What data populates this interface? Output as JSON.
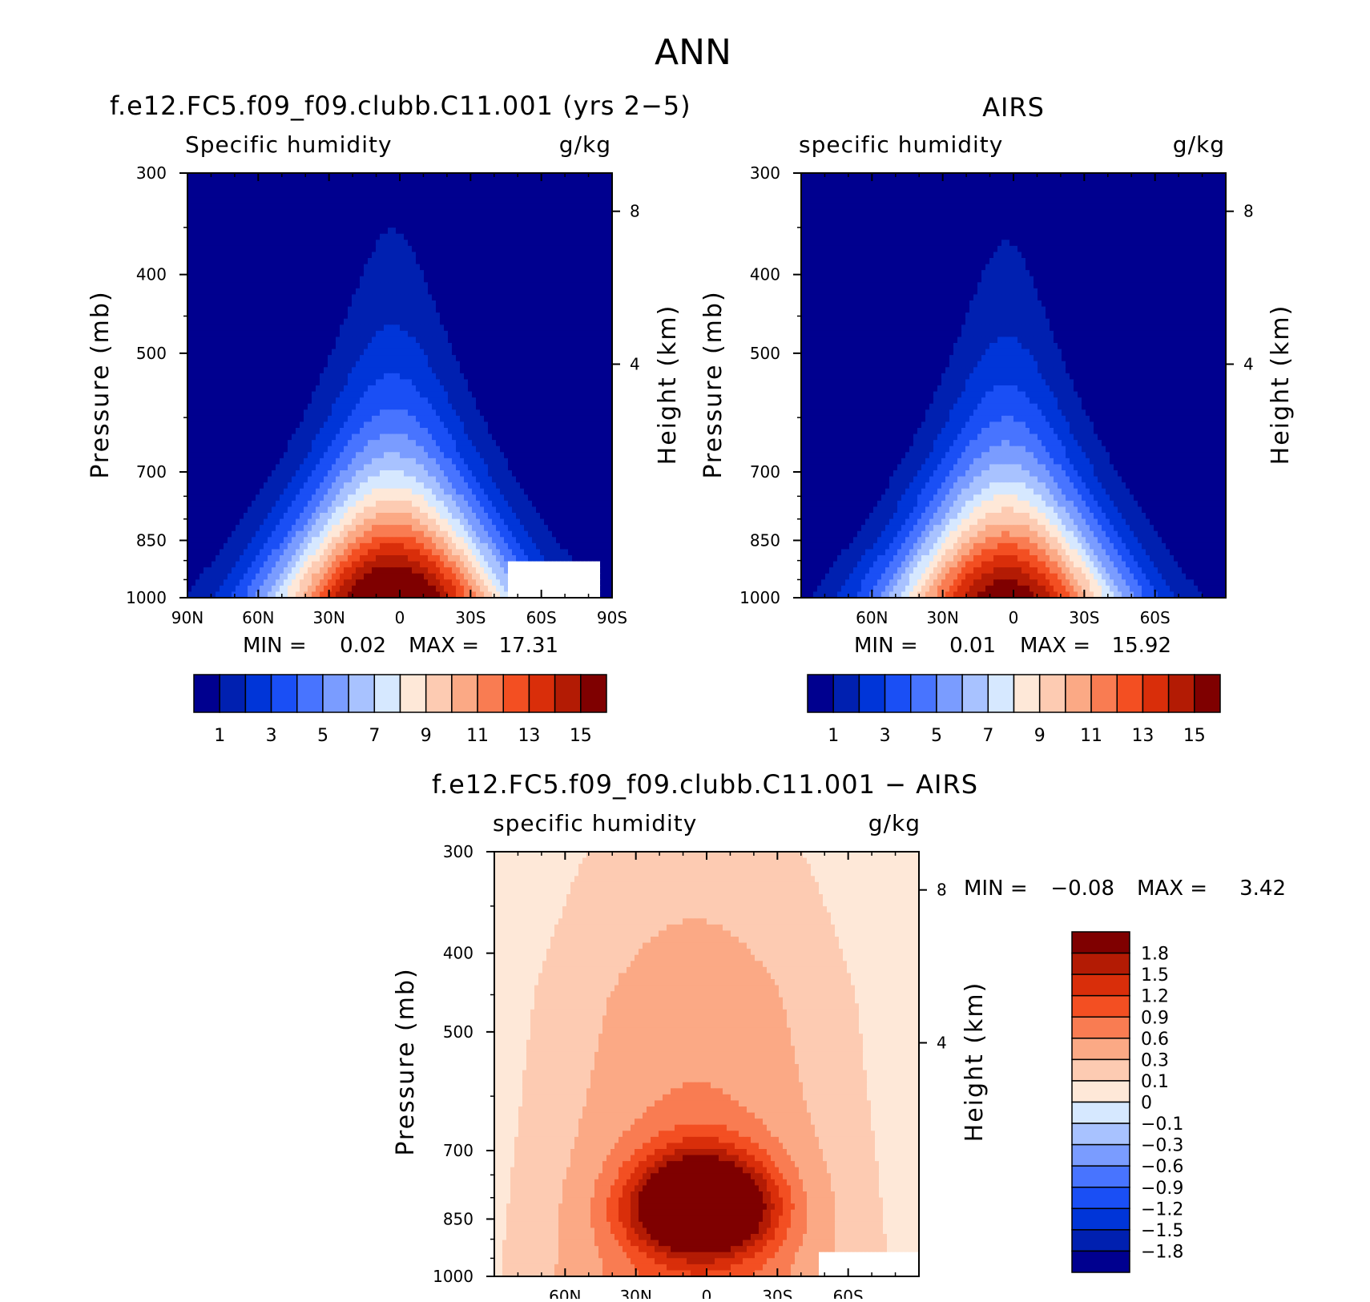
{
  "main_title": "ANN",
  "colors": {
    "seq": [
      "#00008f",
      "#0020b0",
      "#0035d8",
      "#1a4ff5",
      "#4874ff",
      "#7a9cff",
      "#a8c2ff",
      "#d6e8ff",
      "#fee8d8",
      "#fdcbb2",
      "#fba985",
      "#f97c52",
      "#f34f22",
      "#d92e0a",
      "#b31b04",
      "#7f0000"
    ],
    "diff": [
      "#00008f",
      "#0020b0",
      "#0035d8",
      "#1a4ff5",
      "#4874ff",
      "#7a9cff",
      "#a8c2ff",
      "#d6e8ff",
      "#fee8d8",
      "#fdcbb2",
      "#fba985",
      "#f97c52",
      "#f34f22",
      "#d92e0a",
      "#b31b04",
      "#7f0000"
    ]
  },
  "chart_data": [
    {
      "type": "contour",
      "id": "model",
      "title": "f.e12.FC5.f09_f09.clubb.C11.001 (yrs 2−5)",
      "variable": "Specific humidity",
      "units": "g/kg",
      "ylabel": "Pressure (mb)",
      "ylabel_right": "Height (km)",
      "x_ticks": [
        "90N",
        "60N",
        "30N",
        "0",
        "30S",
        "60S",
        "90S"
      ],
      "x_range": [
        90,
        -90
      ],
      "y_ticks": [
        300,
        400,
        500,
        700,
        850,
        1000
      ],
      "y_range": [
        300,
        1000
      ],
      "right_ticks": [
        8,
        4
      ],
      "min_label": "MIN =",
      "min_value": "0.02",
      "max_label": "MAX =",
      "max_value": "17.31",
      "colorbar_levels": [
        1,
        2,
        3,
        4,
        5,
        6,
        7,
        8,
        9,
        10,
        11,
        12,
        13,
        14,
        15
      ],
      "colorbar_labels": [
        "1",
        "3",
        "5",
        "7",
        "9",
        "11",
        "13",
        "15"
      ],
      "field": {
        "center_lat": 3,
        "peak": 17.31,
        "base_width": 52,
        "top_width": 20,
        "nh_boost": 1.0
      }
    },
    {
      "type": "contour",
      "id": "obs",
      "title": "AIRS",
      "variable": "specific humidity",
      "units": "g/kg",
      "ylabel": "Pressure (mb)",
      "ylabel_right": "Height (km)",
      "x_ticks": [
        "60N",
        "30N",
        "0",
        "30S",
        "60S"
      ],
      "x_range": [
        90,
        -90
      ],
      "y_ticks": [
        300,
        400,
        500,
        700,
        850,
        1000
      ],
      "y_range": [
        300,
        1000
      ],
      "right_ticks": [
        8,
        4
      ],
      "min_label": "MIN =",
      "min_value": "0.01",
      "max_label": "MAX =",
      "max_value": "15.92",
      "colorbar_levels": [
        1,
        2,
        3,
        4,
        5,
        6,
        7,
        8,
        9,
        10,
        11,
        12,
        13,
        14,
        15
      ],
      "colorbar_labels": [
        "1",
        "3",
        "5",
        "7",
        "9",
        "11",
        "13",
        "15"
      ],
      "field": {
        "center_lat": 3,
        "peak": 15.92,
        "base_width": 50,
        "top_width": 18,
        "nh_boost": 1.0
      }
    },
    {
      "type": "contour",
      "id": "diff",
      "title": "f.e12.FC5.f09_f09.clubb.C11.001 − AIRS",
      "variable": "specific humidity",
      "units": "g/kg",
      "ylabel": "Pressure (mb)",
      "ylabel_right": "Height (km)",
      "x_ticks": [
        "60N",
        "30N",
        "0",
        "30S",
        "60S"
      ],
      "x_range": [
        90,
        -90
      ],
      "y_ticks": [
        300,
        400,
        500,
        700,
        850,
        1000
      ],
      "y_range": [
        300,
        1000
      ],
      "right_ticks": [
        8,
        4
      ],
      "min_label": "MIN =",
      "min_value": "−0.08",
      "max_label": "MAX =",
      "max_value": "3.42",
      "colorbar_levels": [
        -1.8,
        -1.5,
        -1.2,
        -0.9,
        -0.6,
        -0.3,
        -0.1,
        0,
        0.1,
        0.3,
        0.6,
        0.9,
        1.2,
        1.5,
        1.8
      ],
      "colorbar_labels": [
        "1.8",
        "1.5",
        "1.2",
        "0.9",
        "0.6",
        "0.3",
        "0.1",
        "0",
        "−0.1",
        "−0.3",
        "−0.6",
        "−0.9",
        "−1.2",
        "−1.5",
        "−1.8"
      ],
      "field": {
        "center_lat": 0,
        "peak": 3.42
      }
    }
  ]
}
